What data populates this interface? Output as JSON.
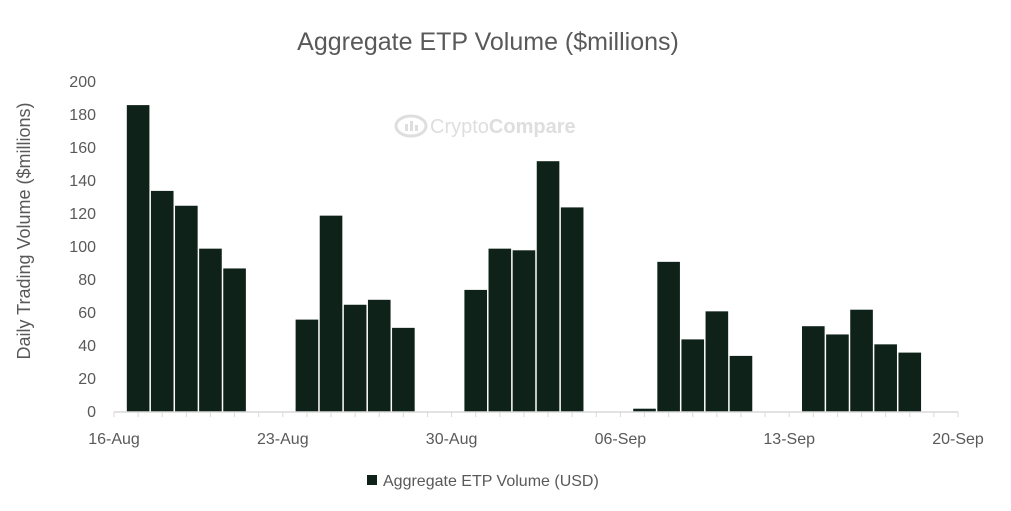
{
  "chart_data": {
    "type": "bar",
    "title": "Aggregate ETP Volume ($millions)",
    "xlabel": "",
    "ylabel": "Daily Trading Volume ($millions)",
    "ylim": [
      0,
      200
    ],
    "yticks": [
      "0",
      "20",
      "40",
      "60",
      "80",
      "100",
      "120",
      "140",
      "160",
      "180",
      "200"
    ],
    "x_range_days": [
      0,
      35
    ],
    "x_ticks": [
      {
        "label": "16-Aug",
        "day": 0
      },
      {
        "label": "23-Aug",
        "day": 7
      },
      {
        "label": "30-Aug",
        "day": 14
      },
      {
        "label": "06-Sep",
        "day": 21
      },
      {
        "label": "13-Sep",
        "day": 28
      },
      {
        "label": "20-Sep",
        "day": 35
      }
    ],
    "series": [
      {
        "name": "Aggregate ETP Volume (USD)",
        "color": "#0f2219",
        "points": [
          {
            "date": "17-Aug",
            "day": 1,
            "value": 186
          },
          {
            "date": "18-Aug",
            "day": 2,
            "value": 134
          },
          {
            "date": "19-Aug",
            "day": 3,
            "value": 125
          },
          {
            "date": "20-Aug",
            "day": 4,
            "value": 99
          },
          {
            "date": "21-Aug",
            "day": 5,
            "value": 87
          },
          {
            "date": "24-Aug",
            "day": 8,
            "value": 56
          },
          {
            "date": "25-Aug",
            "day": 9,
            "value": 119
          },
          {
            "date": "26-Aug",
            "day": 10,
            "value": 65
          },
          {
            "date": "27-Aug",
            "day": 11,
            "value": 68
          },
          {
            "date": "28-Aug",
            "day": 12,
            "value": 51
          },
          {
            "date": "31-Aug",
            "day": 15,
            "value": 74
          },
          {
            "date": "01-Sep",
            "day": 16,
            "value": 99
          },
          {
            "date": "02-Sep",
            "day": 17,
            "value": 98
          },
          {
            "date": "03-Sep",
            "day": 18,
            "value": 152
          },
          {
            "date": "04-Sep",
            "day": 19,
            "value": 124
          },
          {
            "date": "07-Sep",
            "day": 22,
            "value": 2
          },
          {
            "date": "08-Sep",
            "day": 23,
            "value": 91
          },
          {
            "date": "09-Sep",
            "day": 24,
            "value": 44
          },
          {
            "date": "10-Sep",
            "day": 25,
            "value": 61
          },
          {
            "date": "11-Sep",
            "day": 26,
            "value": 34
          },
          {
            "date": "14-Sep",
            "day": 29,
            "value": 52
          },
          {
            "date": "15-Sep",
            "day": 30,
            "value": 47
          },
          {
            "date": "16-Sep",
            "day": 31,
            "value": 62
          },
          {
            "date": "17-Sep",
            "day": 32,
            "value": 41
          },
          {
            "date": "18-Sep",
            "day": 33,
            "value": 36
          }
        ]
      }
    ],
    "legend": "bottom-center",
    "grid": false
  },
  "watermark": {
    "part1": "Crypto",
    "part2": "Compare"
  },
  "colors": {
    "axis": "#d9d9d9",
    "text": "#595959",
    "watermark": "#dedede"
  }
}
